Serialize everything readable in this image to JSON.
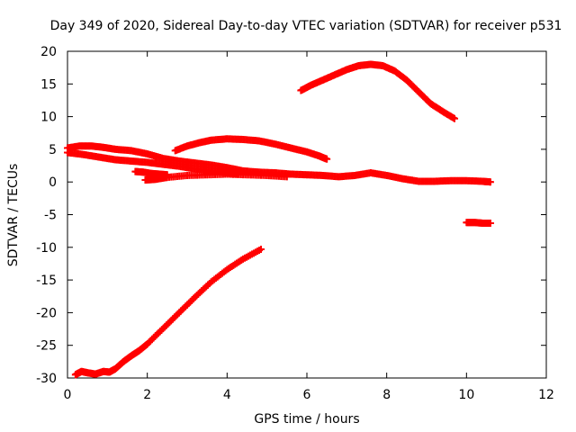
{
  "chart_data": {
    "type": "scatter",
    "title": "Day 349 of 2020, Sidereal Day-to-day VTEC variation (SDTVAR) for receiver p531",
    "xlabel": "GPS time / hours",
    "ylabel": "SDTVAR / TECUs",
    "xlim": [
      0,
      12
    ],
    "ylim": [
      -30,
      20
    ],
    "xticks": [
      "0",
      "2",
      "4",
      "6",
      "8",
      "10",
      "12"
    ],
    "yticks": [
      "-30",
      "-25",
      "-20",
      "-15",
      "-10",
      "-5",
      "0",
      "5",
      "10",
      "15",
      "20"
    ],
    "grid": false,
    "legend": "none",
    "marker": "+",
    "color": "#ff0000",
    "series": [
      {
        "x": [
          0.0,
          0.3,
          0.6,
          0.9,
          1.2,
          1.6,
          2.0,
          2.4,
          2.8,
          3.2,
          3.6,
          4.0,
          4.4,
          4.8,
          5.2,
          5.6,
          6.0,
          6.4,
          6.8,
          7.2,
          7.6,
          8.0,
          8.4,
          8.8,
          9.2,
          9.6,
          10.0,
          10.4,
          10.6
        ],
        "y": [
          5.2,
          5.5,
          5.5,
          5.3,
          5.0,
          4.8,
          4.3,
          3.6,
          3.2,
          2.9,
          2.6,
          2.2,
          1.7,
          1.5,
          1.4,
          1.2,
          1.1,
          1.0,
          0.8,
          1.0,
          1.4,
          1.0,
          0.5,
          0.1,
          0.1,
          0.2,
          0.2,
          0.1,
          0.0
        ]
      },
      {
        "x": [
          0.0,
          0.4,
          0.8,
          1.2,
          1.6,
          2.0,
          2.4,
          2.8,
          3.2,
          3.6,
          4.0,
          4.3
        ],
        "y": [
          4.5,
          4.2,
          3.8,
          3.4,
          3.2,
          3.0,
          2.7,
          2.4,
          2.0,
          1.7,
          1.4,
          1.2
        ]
      },
      {
        "x": [
          1.7,
          1.9,
          2.1,
          2.3,
          2.5
        ],
        "y": [
          1.6,
          1.5,
          1.3,
          1.2,
          1.1
        ]
      },
      {
        "x": [
          1.95,
          2.2,
          2.5,
          3.0,
          3.5,
          4.0,
          4.5,
          5.0,
          5.5
        ],
        "y": [
          0.3,
          0.4,
          0.7,
          1.0,
          1.1,
          1.2,
          1.1,
          1.0,
          0.8
        ]
      },
      {
        "x": [
          2.7,
          3.0,
          3.3,
          3.6,
          4.0,
          4.4,
          4.8,
          5.2,
          5.6,
          6.0,
          6.3,
          6.5
        ],
        "y": [
          4.8,
          5.5,
          6.0,
          6.4,
          6.6,
          6.5,
          6.3,
          5.8,
          5.2,
          4.6,
          4.0,
          3.5
        ]
      },
      {
        "x": [
          5.85,
          6.1,
          6.4,
          6.7,
          7.0,
          7.3,
          7.6,
          7.9,
          8.2,
          8.5,
          8.8,
          9.1,
          9.4,
          9.7
        ],
        "y": [
          14.0,
          14.8,
          15.6,
          16.4,
          17.2,
          17.8,
          18.0,
          17.8,
          17.0,
          15.6,
          13.8,
          12.0,
          10.8,
          9.7
        ]
      },
      {
        "x": [
          10.0,
          10.2,
          10.4,
          10.6
        ],
        "y": [
          -6.2,
          -6.2,
          -6.3,
          -6.3
        ]
      },
      {
        "x": [
          0.2,
          0.35,
          0.5,
          0.7,
          0.9,
          1.05,
          1.2,
          1.4,
          1.6,
          1.8,
          2.0,
          2.4,
          2.8,
          3.2,
          3.6,
          4.0,
          4.4,
          4.85
        ],
        "y": [
          -29.5,
          -29.0,
          -29.2,
          -29.4,
          -29.0,
          -29.1,
          -28.6,
          -27.5,
          -26.6,
          -25.8,
          -24.8,
          -22.4,
          -20.0,
          -17.6,
          -15.3,
          -13.4,
          -11.8,
          -10.3
        ]
      }
    ]
  }
}
